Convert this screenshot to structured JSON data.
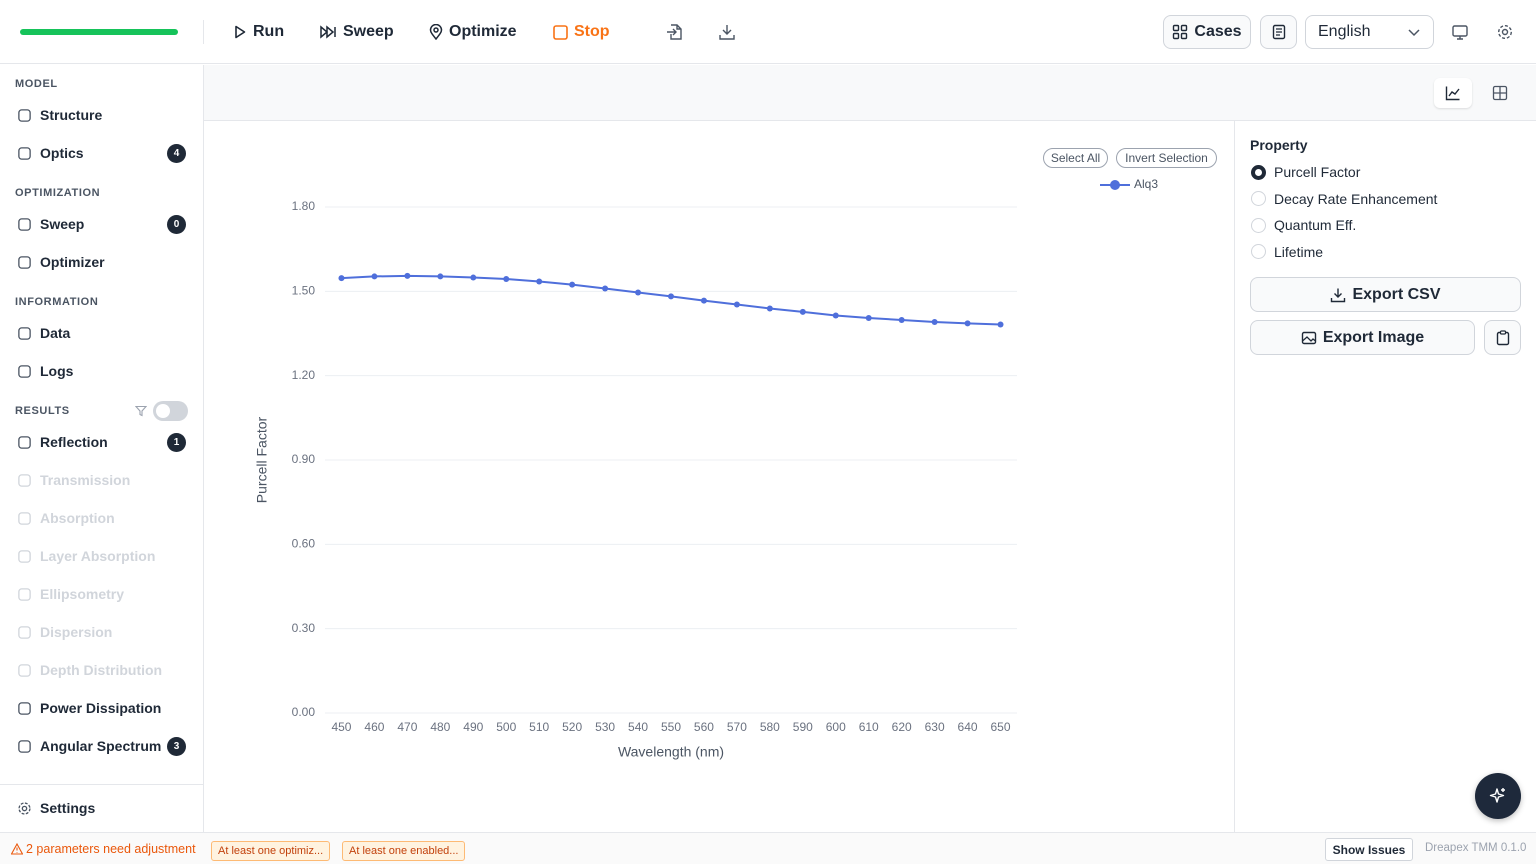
{
  "toolbar": {
    "run": "Run",
    "sweep": "Sweep",
    "optimize": "Optimize",
    "stop": "Stop",
    "cases": "Cases",
    "language": "English"
  },
  "sidebar": {
    "sections": [
      {
        "title": "MODEL",
        "items": [
          {
            "label": "Structure"
          },
          {
            "label": "Optics",
            "badge": 4
          }
        ]
      },
      {
        "title": "OPTIMIZATION",
        "items": [
          {
            "label": "Sweep",
            "badge": 0
          },
          {
            "label": "Optimizer"
          }
        ]
      },
      {
        "title": "INFORMATION",
        "items": [
          {
            "label": "Data"
          },
          {
            "label": "Logs"
          }
        ]
      },
      {
        "title": "RESULTS",
        "items": [
          {
            "label": "Reflection",
            "badge": 1
          },
          {
            "label": "Transmission",
            "enabled": false
          },
          {
            "label": "Absorption",
            "enabled": false
          },
          {
            "label": "Layer Absorption",
            "enabled": false
          },
          {
            "label": "Ellipsometry",
            "enabled": false
          },
          {
            "label": "Dispersion",
            "enabled": false
          },
          {
            "label": "Depth Distribution",
            "enabled": false
          },
          {
            "label": "Power Dissipation"
          },
          {
            "label": "Angular Spectrum",
            "badge": 3
          }
        ]
      }
    ],
    "settings": "Settings"
  },
  "chart_controls": {
    "select_all": "Select All",
    "invert_selection": "Invert Selection"
  },
  "chart_data": {
    "type": "line",
    "x_label": "Wavelength (nm)",
    "y_label": "Purcell Factor",
    "x": [
      450,
      460,
      470,
      480,
      490,
      500,
      510,
      520,
      530,
      540,
      550,
      560,
      570,
      580,
      590,
      600,
      610,
      620,
      630,
      640,
      650
    ],
    "series": [
      {
        "name": "Alq3",
        "color": "#4f6fdb",
        "values": [
          1.547,
          1.553,
          1.555,
          1.553,
          1.549,
          1.544,
          1.535,
          1.524,
          1.51,
          1.496,
          1.482,
          1.467,
          1.453,
          1.439,
          1.427,
          1.414,
          1.405,
          1.398,
          1.391,
          1.386,
          1.382
        ]
      }
    ],
    "xlim": [
      445,
      655
    ],
    "xticks": [
      450,
      460,
      470,
      480,
      490,
      500,
      510,
      520,
      530,
      540,
      550,
      560,
      570,
      580,
      590,
      600,
      610,
      620,
      630,
      640,
      650
    ],
    "ylim": [
      0,
      1.8
    ],
    "yticks": [
      {
        "value": 0,
        "label": "0.00"
      },
      {
        "value": 0.3,
        "label": "0.30"
      },
      {
        "value": 0.6,
        "label": "0.60"
      },
      {
        "value": 0.9,
        "label": "0.90"
      },
      {
        "value": 1.2,
        "label": "1.20"
      },
      {
        "value": 1.5,
        "label": "1.50"
      },
      {
        "value": 1.8,
        "label": "1.80"
      }
    ],
    "grid": true
  },
  "panel": {
    "title": "Property",
    "options": [
      {
        "label": "Purcell Factor",
        "selected": true
      },
      {
        "label": "Decay Rate Enhancement"
      },
      {
        "label": "Quantum Eff."
      },
      {
        "label": "Lifetime"
      }
    ],
    "export_csv": "Export CSV",
    "export_image": "Export Image"
  },
  "status": {
    "warning": "2 parameters need adjustment",
    "chips": [
      "At least one optimiz...",
      "At least one enabled..."
    ],
    "show_issues": "Show Issues",
    "version": "Dreapex TMM 0.1.0"
  }
}
